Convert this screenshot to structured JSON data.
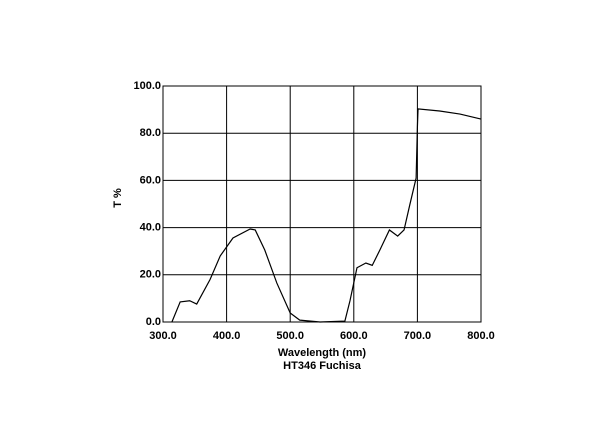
{
  "chart_data": {
    "type": "line",
    "title": "HT346 Fuchisa",
    "xlabel": "Wavelength (nm)",
    "ylabel": "T %",
    "x": [
      314,
      327,
      342,
      353,
      374,
      390,
      410,
      437,
      445,
      460,
      479,
      500,
      515,
      547,
      586,
      594,
      605,
      619,
      629,
      641,
      656,
      669,
      679,
      688,
      698,
      700,
      701,
      735,
      767,
      800
    ],
    "series": [
      {
        "name": "HT346 Fuchisa",
        "color": "#000000",
        "values": [
          0,
          8.5,
          9,
          7.6,
          18,
          28,
          35.6,
          39.4,
          39,
          30.5,
          16.5,
          3.8,
          0.8,
          0,
          0.4,
          9,
          23,
          25,
          24,
          30.5,
          39,
          36.4,
          39,
          49.6,
          61,
          82.6,
          90.3,
          89.4,
          88.1,
          86
        ]
      }
    ],
    "xlim": [
      300,
      800
    ],
    "ylim": [
      0,
      100
    ],
    "xticks": [
      {
        "value": 300,
        "label": "300.0"
      },
      {
        "value": 400,
        "label": "400.0"
      },
      {
        "value": 500,
        "label": "500.0"
      },
      {
        "value": 600,
        "label": "600.0"
      },
      {
        "value": 700,
        "label": "700.0"
      },
      {
        "value": 800,
        "label": "800.0"
      }
    ],
    "yticks": [
      {
        "value": 0,
        "label": "0.0"
      },
      {
        "value": 20,
        "label": "20.0"
      },
      {
        "value": 40,
        "label": "40.0"
      },
      {
        "value": 60,
        "label": "60.0"
      },
      {
        "value": 80,
        "label": "80.0"
      },
      {
        "value": 100,
        "label": "100.0"
      }
    ],
    "grid": true
  }
}
